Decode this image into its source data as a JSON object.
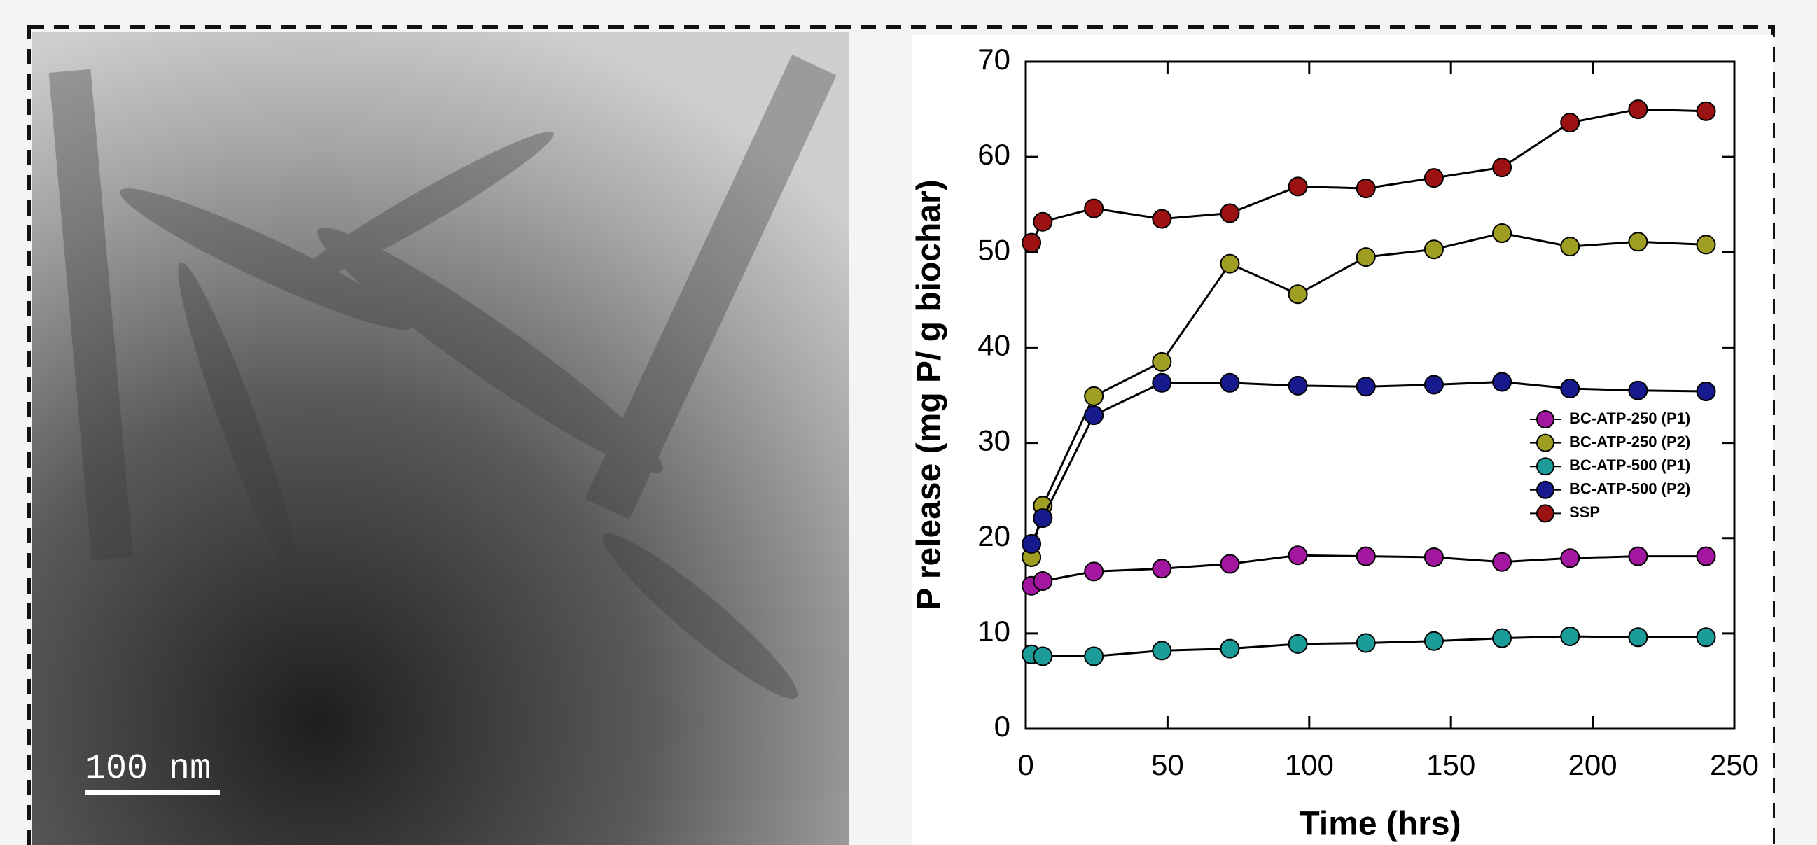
{
  "scale_bar_label": "100 nm",
  "chart_data": {
    "type": "line",
    "x_label": "Time (hrs)",
    "y_label": "P release (mg P/ g biochar)",
    "x": [
      2,
      6,
      24,
      48,
      72,
      96,
      120,
      144,
      168,
      192,
      216,
      240
    ],
    "series": [
      {
        "name": "BC-ATP-250 (P1)",
        "color": "#a3169f",
        "values": [
          15.0,
          15.5,
          16.5,
          16.8,
          17.3,
          18.2,
          18.1,
          18.0,
          17.5,
          17.9,
          18.1,
          18.1
        ]
      },
      {
        "name": "BC-ATP-250 (P2)",
        "color": "#a09e22",
        "values": [
          18.0,
          23.4,
          34.9,
          38.5,
          48.8,
          45.6,
          49.5,
          50.3,
          52.0,
          50.6,
          51.1,
          50.8
        ]
      },
      {
        "name": "BC-ATP-500 (P1)",
        "color": "#1c9c98",
        "values": [
          7.8,
          7.6,
          7.6,
          8.2,
          8.4,
          8.9,
          9.0,
          9.2,
          9.5,
          9.7,
          9.6,
          9.6
        ]
      },
      {
        "name": "BC-ATP-500 (P2)",
        "color": "#171a8c",
        "values": [
          19.4,
          22.1,
          32.9,
          36.3,
          36.3,
          36.0,
          35.9,
          36.1,
          36.4,
          35.7,
          35.5,
          35.4
        ]
      },
      {
        "name": "SSP",
        "color": "#9c1212",
        "values": [
          51.0,
          53.2,
          54.6,
          53.5,
          54.1,
          56.9,
          56.7,
          57.8,
          58.9,
          63.6,
          65.0,
          64.8
        ]
      }
    ],
    "xlim": [
      0,
      250
    ],
    "xticks": [
      0,
      50,
      100,
      150,
      200,
      250
    ],
    "ylim": [
      0,
      70
    ],
    "yticks": [
      0,
      10,
      20,
      30,
      40,
      50,
      60,
      70
    ],
    "legend": "right"
  }
}
